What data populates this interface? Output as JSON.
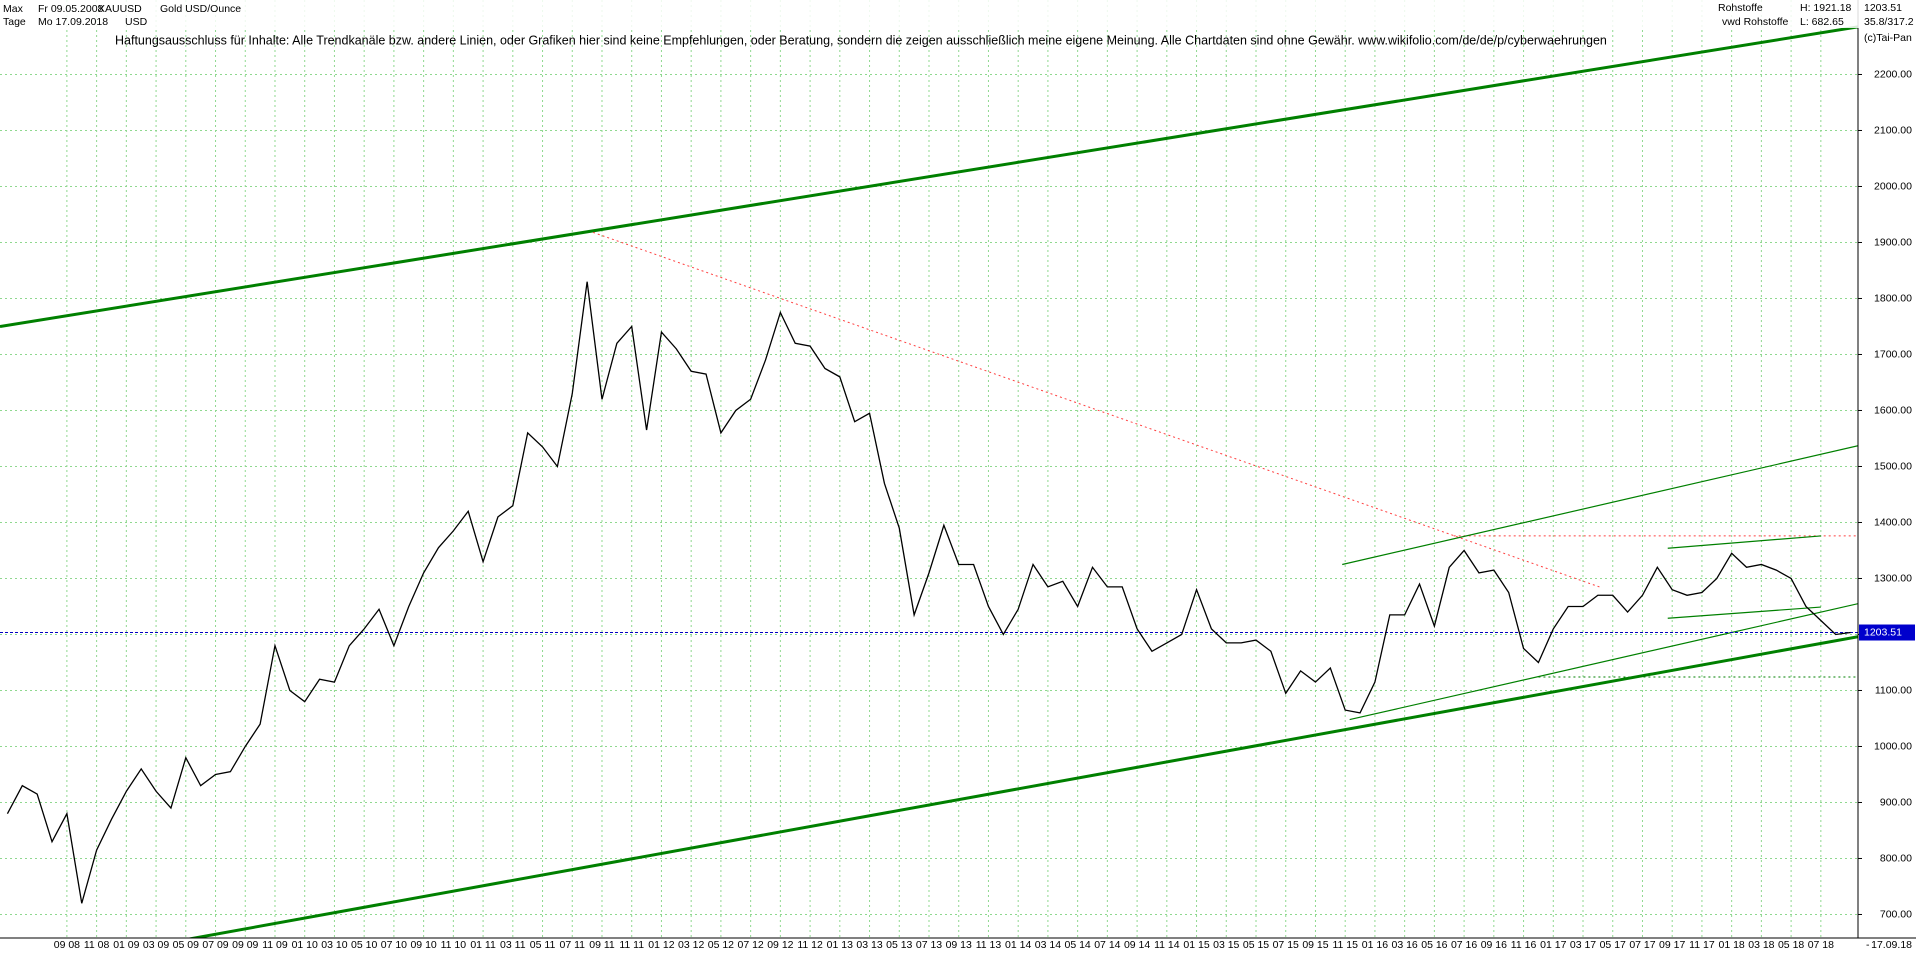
{
  "chart_data": {
    "type": "line",
    "title": "Gold USD/Ounce",
    "symbol": "XAUUSD",
    "currency": "USD",
    "range_label": "Max",
    "interval_label": "Tage",
    "start_date": "Fr 09.05.2008",
    "end_date": "Mo 17.09.2018",
    "market": "Rohstoffe",
    "source": "vwd Rohstoffe",
    "high_label": "H: 1921.18",
    "low_label": "L: 682.65",
    "scale_label": "35.8/317.2",
    "copyright": "(c)Tai-Pan",
    "disclaimer": "Haftungsausschluss für Inhalte: Alle Trendkanäle bzw. andere Linien, oder Grafiken hier sind keine Empfehlungen, oder Beratung, sondern die zeigen ausschließlich meine eigene Meinung. Alle Chartdaten sind ohne Gewähr.  www.wikifolio.com/de/de/p/cyberwaehrungen",
    "axis_end_date": "17.09.18",
    "axis_dash": "-",
    "last_price": {
      "value": 1203.51,
      "label": "1203.51"
    },
    "color": "#000000",
    "grid": true,
    "categories": [
      null,
      null,
      null,
      null,
      "09 08",
      null,
      "11 08",
      null,
      "01 09",
      null,
      "03 09",
      null,
      "05 09",
      null,
      "07 09",
      null,
      "09 09",
      null,
      "11 09",
      null,
      "01 10",
      null,
      "03 10",
      null,
      "05 10",
      null,
      "07 10",
      null,
      "09 10",
      null,
      "11 10",
      null,
      "01 11",
      null,
      "03 11",
      null,
      "05 11",
      null,
      "07 11",
      null,
      "09 11",
      null,
      "11 11",
      null,
      "01 12",
      null,
      "03 12",
      null,
      "05 12",
      null,
      "07 12",
      null,
      "09 12",
      null,
      "11 12",
      null,
      "01 13",
      null,
      "03 13",
      null,
      "05 13",
      null,
      "07 13",
      null,
      "09 13",
      null,
      "11 13",
      null,
      "01 14",
      null,
      "03 14",
      null,
      "05 14",
      null,
      "07 14",
      null,
      "09 14",
      null,
      "11 14",
      null,
      "01 15",
      null,
      "03 15",
      null,
      "05 15",
      null,
      "07 15",
      null,
      "09 15",
      null,
      "11 15",
      null,
      "01 16",
      null,
      "03 16",
      null,
      "05 16",
      null,
      "07 16",
      null,
      "09 16",
      null,
      "11 16",
      null,
      "01 17",
      null,
      "03 17",
      null,
      "05 17",
      null,
      "07 17",
      null,
      "09 17",
      null,
      "11 17",
      null,
      "01 18",
      null,
      "03 18",
      null,
      "05 18",
      null,
      "07 18",
      null,
      null
    ],
    "values": [
      880,
      930,
      915,
      830,
      880,
      720,
      815,
      870,
      920,
      960,
      920,
      890,
      980,
      930,
      950,
      955,
      1000,
      1040,
      1180,
      1100,
      1080,
      1120,
      1115,
      1180,
      1210,
      1245,
      1180,
      1250,
      1310,
      1355,
      1385,
      1420,
      1330,
      1410,
      1430,
      1560,
      1535,
      1500,
      1630,
      1830,
      1620,
      1720,
      1750,
      1565,
      1740,
      1710,
      1670,
      1665,
      1560,
      1600,
      1620,
      1690,
      1775,
      1720,
      1715,
      1675,
      1660,
      1580,
      1595,
      1470,
      1390,
      1235,
      1310,
      1395,
      1325,
      1325,
      1250,
      1200,
      1245,
      1325,
      1285,
      1295,
      1250,
      1320,
      1285,
      1285,
      1210,
      1170,
      1185,
      1200,
      1280,
      1210,
      1185,
      1185,
      1190,
      1170,
      1095,
      1135,
      1115,
      1140,
      1065,
      1060,
      1115,
      1235,
      1235,
      1290,
      1215,
      1320,
      1350,
      1310,
      1315,
      1275,
      1175,
      1150,
      1210,
      1250,
      1250,
      1270,
      1270,
      1240,
      1270,
      1320,
      1280,
      1270,
      1275,
      1300,
      1345,
      1320,
      1325,
      1315,
      1300,
      1250,
      1225,
      1200,
      1203.51
    ],
    "ylim": [
      658,
      2333
    ],
    "yticks": [
      {
        "value": 700,
        "label": "700.00"
      },
      {
        "value": 800,
        "label": "800.00"
      },
      {
        "value": 900,
        "label": "900.00"
      },
      {
        "value": 1000,
        "label": "1000.00"
      },
      {
        "value": 1100,
        "label": "1100.00"
      },
      {
        "value": 1200,
        "label": "1200.00"
      },
      {
        "value": 1300,
        "label": "1300.00"
      },
      {
        "value": 1400,
        "label": "1400.00"
      },
      {
        "value": 1500,
        "label": "1500.00"
      },
      {
        "value": 1600,
        "label": "1600.00"
      },
      {
        "value": 1700,
        "label": "1700.00"
      },
      {
        "value": 1800,
        "label": "1800.00"
      },
      {
        "value": 1900,
        "label": "1900.00"
      },
      {
        "value": 2000,
        "label": "2000.00"
      },
      {
        "value": 2100,
        "label": "2100.00"
      },
      {
        "value": 2200,
        "label": "2200.00"
      }
    ],
    "trend_lines": [
      {
        "start": [
          -0.5,
          1750
        ],
        "end": [
          124.5,
          2285
        ],
        "color": "#008000",
        "width": 3,
        "dashed": false
      },
      {
        "start": [
          -0.5,
          595
        ],
        "end": [
          124.5,
          1196
        ],
        "color": "#008000",
        "width": 3,
        "dashed": false
      },
      {
        "start": [
          39.4,
          1918
        ],
        "end": [
          107.2,
          1284
        ],
        "color": "#ff4040",
        "width": 1,
        "dashed": true
      },
      {
        "start": [
          97.3,
          1376
        ],
        "end": [
          124.5,
          1376
        ],
        "color": "#ff4040",
        "width": 1,
        "dashed": true
      },
      {
        "start": [
          89.8,
          1325
        ],
        "end": [
          124.5,
          1537
        ],
        "color": "#008000",
        "width": 1.2,
        "dashed": false
      },
      {
        "start": [
          90.3,
          1048
        ],
        "end": [
          124.5,
          1255
        ],
        "color": "#008000",
        "width": 1.2,
        "dashed": false
      },
      {
        "start": [
          111.7,
          1354
        ],
        "end": [
          122,
          1376
        ],
        "color": "#008000",
        "width": 1.2,
        "dashed": false
      },
      {
        "start": [
          111.7,
          1229
        ],
        "end": [
          122,
          1249
        ],
        "color": "#008000",
        "width": 1.2,
        "dashed": false
      },
      {
        "start": [
          103,
          1124
        ],
        "end": [
          124.5,
          1124
        ],
        "color": "#008000",
        "width": 1,
        "dashed": true
      }
    ]
  }
}
